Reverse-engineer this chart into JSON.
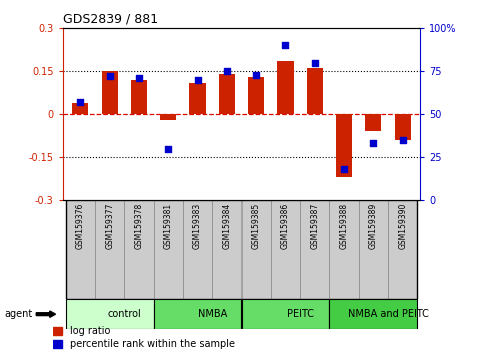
{
  "title": "GDS2839 / 881",
  "samples": [
    "GSM159376",
    "GSM159377",
    "GSM159378",
    "GSM159381",
    "GSM159383",
    "GSM159384",
    "GSM159385",
    "GSM159386",
    "GSM159387",
    "GSM159388",
    "GSM159389",
    "GSM159390"
  ],
  "log_ratio": [
    0.04,
    0.15,
    0.12,
    -0.02,
    0.11,
    0.14,
    0.13,
    0.185,
    0.16,
    -0.22,
    -0.06,
    -0.09
  ],
  "percentile_rank": [
    57,
    72,
    71,
    30,
    70,
    75,
    73,
    90,
    80,
    18,
    33,
    35
  ],
  "bar_color": "#cc2200",
  "dot_color": "#0000cc",
  "groups": [
    {
      "label": "control",
      "start": 0,
      "end": 3,
      "color": "#ccffcc"
    },
    {
      "label": "NMBA",
      "start": 3,
      "end": 6,
      "color": "#66dd66"
    },
    {
      "label": "PEITC",
      "start": 6,
      "end": 9,
      "color": "#66dd66"
    },
    {
      "label": "NMBA and PEITC",
      "start": 9,
      "end": 12,
      "color": "#44cc44"
    }
  ],
  "ylim_left": [
    -0.3,
    0.3
  ],
  "ylim_right": [
    0,
    100
  ],
  "yticks_left": [
    -0.3,
    -0.15,
    0.0,
    0.15,
    0.3
  ],
  "yticks_right": [
    0,
    25,
    50,
    75,
    100
  ],
  "yticklabels_right": [
    "0",
    "25",
    "50",
    "75",
    "100%"
  ],
  "agent_label": "agent",
  "legend_items": [
    {
      "label": "log ratio",
      "color": "#cc2200"
    },
    {
      "label": "percentile rank within the sample",
      "color": "#0000cc"
    }
  ],
  "xlabel_box_color": "#cccccc",
  "xlabel_box_edge": "#888888"
}
